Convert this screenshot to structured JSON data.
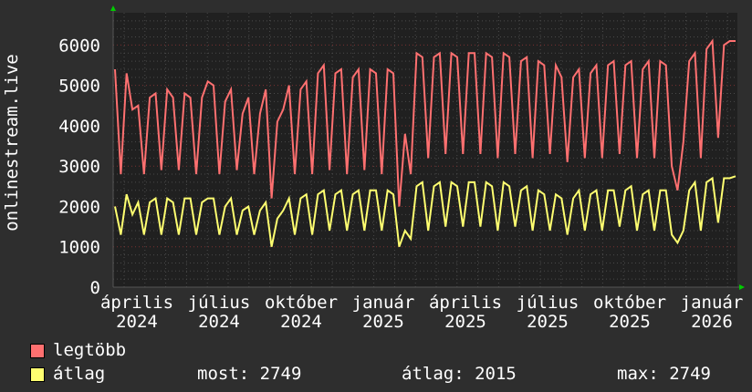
{
  "chart_data": {
    "type": "line",
    "ylabel": "onlinestream.live",
    "ylim": [
      0,
      6800
    ],
    "yticks": [
      "0",
      "1000",
      "2000",
      "3000",
      "4000",
      "5000",
      "6000"
    ],
    "xticks": [
      "április 2024",
      "július 2024",
      "október 2024",
      "január 2025",
      "április 2025",
      "július 2025",
      "október 2025",
      "január 2026"
    ],
    "grid": true,
    "colors": {
      "background": "#2e2e2e",
      "plot": "#202020",
      "max": "#ff7070",
      "avg": "#ffff70",
      "major_grid": "#7a3030",
      "minor_grid": "#4a4a4a",
      "arrow": "#00cc00"
    },
    "series": [
      {
        "name": "legtöbb",
        "color": "#ff7070",
        "values": [
          5400,
          2800,
          5300,
          4400,
          4500,
          2800,
          4700,
          4800,
          2900,
          4900,
          4700,
          2900,
          4800,
          4700,
          2800,
          4700,
          5100,
          5000,
          2800,
          4600,
          4900,
          2900,
          4300,
          4700,
          2800,
          4300,
          4900,
          2200,
          4100,
          4400,
          5000,
          2800,
          4900,
          5100,
          2800,
          5300,
          5500,
          2900,
          5300,
          5400,
          2800,
          5200,
          5400,
          2900,
          5400,
          5300,
          2800,
          5400,
          5300,
          2000,
          3800,
          2800,
          5800,
          5700,
          3200,
          5700,
          5800,
          3300,
          5800,
          5700,
          3300,
          5800,
          5800,
          3300,
          5800,
          5700,
          3200,
          5800,
          5700,
          3300,
          5600,
          5700,
          3200,
          5600,
          5500,
          3300,
          5500,
          5200,
          3100,
          5200,
          5400,
          3200,
          5300,
          5500,
          3200,
          5500,
          5600,
          3300,
          5500,
          5600,
          3200,
          5400,
          5600,
          3200,
          5600,
          5500,
          3000,
          2400,
          3600,
          5600,
          5800,
          3200,
          5900,
          6100,
          3700,
          6000,
          6100,
          6100
        ]
      },
      {
        "name": "átlag",
        "color": "#ffff70",
        "values": [
          2000,
          1300,
          2300,
          1800,
          2100,
          1300,
          2100,
          2200,
          1300,
          2200,
          2100,
          1300,
          2200,
          2200,
          1300,
          2100,
          2200,
          2200,
          1300,
          2000,
          2200,
          1300,
          1900,
          2000,
          1300,
          1900,
          2100,
          1000,
          1700,
          1900,
          2200,
          1300,
          2200,
          2300,
          1300,
          2300,
          2400,
          1400,
          2300,
          2400,
          1400,
          2300,
          2400,
          1400,
          2400,
          2400,
          1400,
          2400,
          2300,
          1000,
          1400,
          1200,
          2500,
          2600,
          1400,
          2500,
          2600,
          1500,
          2600,
          2500,
          1500,
          2600,
          2600,
          1500,
          2600,
          2500,
          1400,
          2600,
          2500,
          1500,
          2400,
          2500,
          1400,
          2400,
          2300,
          1400,
          2300,
          2200,
          1300,
          2200,
          2400,
          1400,
          2300,
          2400,
          1400,
          2400,
          2400,
          1500,
          2400,
          2500,
          1400,
          2300,
          2400,
          1400,
          2400,
          2400,
          1300,
          1100,
          1400,
          2400,
          2600,
          1400,
          2600,
          2700,
          1600,
          2700,
          2700,
          2749
        ]
      }
    ]
  },
  "legend": {
    "max_label": "legtöbb",
    "avg_label": "átlag",
    "now": "most: 2749",
    "average": "átlag: 2015",
    "maximum": "max: 2749"
  }
}
